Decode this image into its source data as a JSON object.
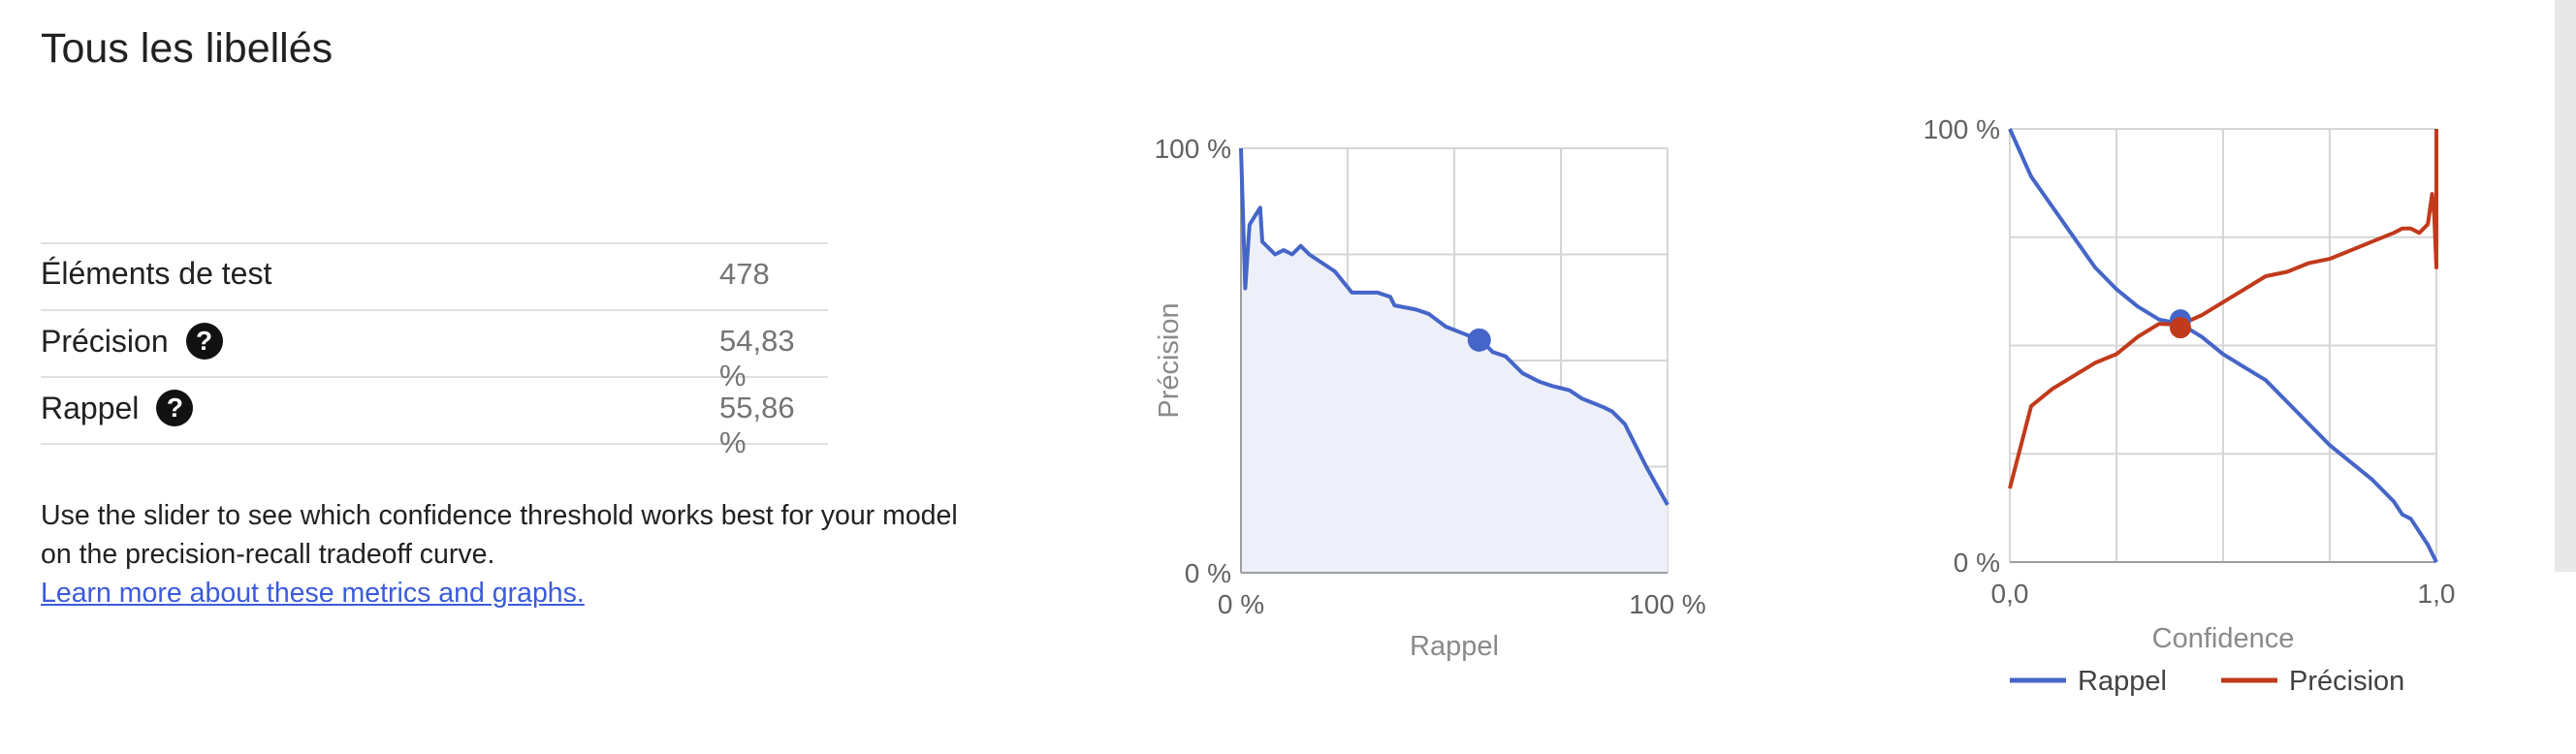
{
  "title": "Tous les libellés",
  "metrics": [
    {
      "label": "Éléments de test",
      "value": "478",
      "help": false
    },
    {
      "label": "Précision",
      "value": "54,83 %",
      "help": true
    },
    {
      "label": "Rappel",
      "value": "55,86 %",
      "help": true
    }
  ],
  "help_glyph": "?",
  "description": {
    "text": "Use the slider to see which confidence threshold works best for your model on the precision-recall tradeoff curve.",
    "link": "Learn more about these metrics and graphs."
  },
  "colors": {
    "recall": "#4565c8",
    "precision": "#c13a1b",
    "fill": "#edf0f8",
    "grid": "#d6d6d6"
  },
  "chart_data": [
    {
      "type": "area",
      "xlabel": "Rappel",
      "ylabel": "Précision",
      "x_ticks": [
        "0 %",
        "100 %"
      ],
      "y_ticks": [
        "100 %",
        "0 %"
      ],
      "xlim": [
        0,
        1
      ],
      "ylim": [
        0,
        1
      ],
      "grid": true,
      "series": [
        {
          "x": [
            0,
            0.01,
            0.02,
            0.045,
            0.05,
            0.08,
            0.1,
            0.12,
            0.14,
            0.16,
            0.22,
            0.26,
            0.32,
            0.35,
            0.36,
            0.41,
            0.44,
            0.48,
            0.53,
            0.56,
            0.59,
            0.62,
            0.66,
            0.7,
            0.73,
            0.77,
            0.8,
            0.85,
            0.87,
            0.9,
            0.95,
            1.0
          ],
          "y": [
            1.0,
            0.67,
            0.82,
            0.86,
            0.78,
            0.75,
            0.76,
            0.75,
            0.77,
            0.75,
            0.71,
            0.66,
            0.66,
            0.65,
            0.63,
            0.62,
            0.61,
            0.58,
            0.56,
            0.55,
            0.52,
            0.51,
            0.47,
            0.45,
            0.44,
            0.43,
            0.41,
            0.39,
            0.38,
            0.35,
            0.25,
            0.16
          ]
        }
      ],
      "marker": {
        "x": 0.5586,
        "y": 0.5483
      }
    },
    {
      "type": "line",
      "xlabel": "Confidence",
      "x_ticks": [
        "0,0",
        "1,0"
      ],
      "y_ticks": [
        "100 %",
        "0 %"
      ],
      "xlim": [
        0,
        1
      ],
      "ylim": [
        0,
        1
      ],
      "grid": true,
      "legend_position": "bottom",
      "series": [
        {
          "name": "Rappel",
          "x": [
            0,
            0.05,
            0.1,
            0.15,
            0.2,
            0.25,
            0.3,
            0.35,
            0.4,
            0.45,
            0.5,
            0.55,
            0.6,
            0.65,
            0.7,
            0.75,
            0.8,
            0.85,
            0.9,
            0.92,
            0.94,
            0.96,
            0.98,
            1.0
          ],
          "y": [
            1.0,
            0.89,
            0.82,
            0.75,
            0.68,
            0.63,
            0.59,
            0.56,
            0.55,
            0.52,
            0.48,
            0.45,
            0.42,
            0.37,
            0.32,
            0.27,
            0.23,
            0.19,
            0.14,
            0.11,
            0.1,
            0.07,
            0.04,
            0.0
          ]
        },
        {
          "name": "Précision",
          "x": [
            0,
            0.05,
            0.1,
            0.15,
            0.2,
            0.25,
            0.3,
            0.35,
            0.4,
            0.45,
            0.5,
            0.55,
            0.6,
            0.65,
            0.7,
            0.75,
            0.8,
            0.85,
            0.9,
            0.92,
            0.94,
            0.96,
            0.98,
            0.99,
            0.995,
            1.0,
            1.0
          ],
          "y": [
            0.17,
            0.36,
            0.4,
            0.43,
            0.46,
            0.48,
            0.52,
            0.55,
            0.548,
            0.57,
            0.6,
            0.63,
            0.66,
            0.67,
            0.69,
            0.7,
            0.72,
            0.74,
            0.76,
            0.77,
            0.77,
            0.76,
            0.78,
            0.85,
            0.8,
            0.68,
            1.0
          ]
        }
      ],
      "marker": {
        "x": 0.4,
        "y": 0.55
      }
    }
  ]
}
